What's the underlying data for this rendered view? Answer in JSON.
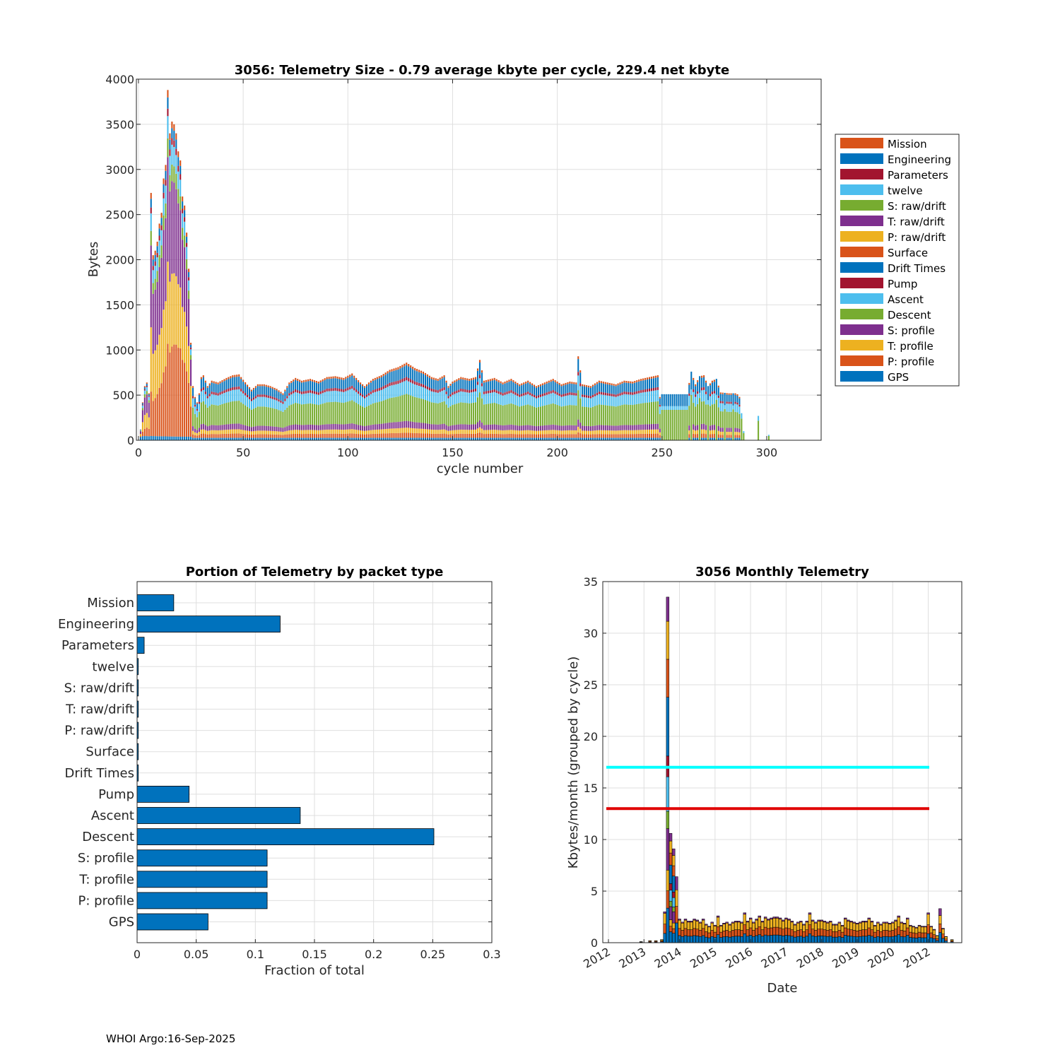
{
  "footer": "WHOI Argo:16-Sep-2025",
  "colors": {
    "orange": "#D95319",
    "blue": "#0072BD",
    "darkred": "#A2142F",
    "lightblue": "#4DBEEE",
    "green": "#77AC30",
    "purple": "#7E2F8E",
    "yellow": "#EDB120",
    "cyan": "#00FFFF",
    "red": "#E00000"
  },
  "chart_data": [
    {
      "type": "bar",
      "stacked": true,
      "title": "3056: Telemetry Size - 0.79 average kbyte per cycle,  229.4 net kbyte",
      "xlabel": "cycle number",
      "ylabel": "Bytes",
      "xlim": [
        -1,
        326
      ],
      "ylim": [
        0,
        4000
      ],
      "xticks": [
        0,
        50,
        100,
        150,
        200,
        250,
        300
      ],
      "yticks": [
        0,
        500,
        1000,
        1500,
        2000,
        2500,
        3000,
        3500,
        4000
      ],
      "legend_position": "outside-right",
      "legend": [
        "Mission",
        "Engineering",
        "Parameters",
        "twelve",
        "S: raw/drift",
        "T: raw/drift",
        "P: raw/drift",
        "Surface",
        "Drift Times",
        "Pump",
        "Ascent",
        "Descent",
        "S: profile",
        "T: profile",
        "P: profile",
        "GPS"
      ],
      "legend_colors": [
        "#D95319",
        "#0072BD",
        "#A2142F",
        "#4DBEEE",
        "#77AC30",
        "#7E2F8E",
        "#EDB120",
        "#D95319",
        "#0072BD",
        "#A2142F",
        "#4DBEEE",
        "#77AC30",
        "#7E2F8E",
        "#EDB120",
        "#D95319",
        "#0072BD"
      ],
      "anchors": [
        [
          0,
          0
        ],
        [
          1,
          120
        ],
        [
          2,
          420
        ],
        [
          3,
          600
        ],
        [
          4,
          640
        ],
        [
          5,
          520
        ],
        [
          6,
          2740
        ],
        [
          7,
          2050
        ],
        [
          8,
          2100
        ],
        [
          9,
          2200
        ],
        [
          10,
          2400
        ],
        [
          11,
          2520
        ],
        [
          12,
          2900
        ],
        [
          13,
          3050
        ],
        [
          14,
          3880
        ],
        [
          15,
          3400
        ],
        [
          16,
          3530
        ],
        [
          17,
          3500
        ],
        [
          18,
          3400
        ],
        [
          19,
          3200
        ],
        [
          20,
          3100
        ],
        [
          21,
          2700
        ],
        [
          22,
          2600
        ],
        [
          23,
          2300
        ],
        [
          24,
          1900
        ],
        [
          25,
          1080
        ],
        [
          26,
          600
        ],
        [
          27,
          480
        ],
        [
          28,
          420
        ],
        [
          29,
          520
        ],
        [
          30,
          700
        ],
        [
          31,
          720
        ],
        [
          33,
          600
        ],
        [
          35,
          660
        ],
        [
          38,
          640
        ],
        [
          42,
          690
        ],
        [
          45,
          720
        ],
        [
          48,
          730
        ],
        [
          50,
          670
        ],
        [
          54,
          560
        ],
        [
          57,
          620
        ],
        [
          60,
          620
        ],
        [
          63,
          600
        ],
        [
          66,
          570
        ],
        [
          69,
          520
        ],
        [
          72,
          640
        ],
        [
          75,
          690
        ],
        [
          78,
          660
        ],
        [
          82,
          680
        ],
        [
          86,
          650
        ],
        [
          90,
          700
        ],
        [
          94,
          710
        ],
        [
          98,
          690
        ],
        [
          102,
          740
        ],
        [
          106,
          640
        ],
        [
          108,
          600
        ],
        [
          112,
          680
        ],
        [
          116,
          720
        ],
        [
          120,
          780
        ],
        [
          124,
          810
        ],
        [
          128,
          860
        ],
        [
          132,
          800
        ],
        [
          136,
          760
        ],
        [
          140,
          700
        ],
        [
          143,
          680
        ],
        [
          146,
          720
        ],
        [
          148,
          600
        ],
        [
          150,
          650
        ],
        [
          154,
          700
        ],
        [
          158,
          680
        ],
        [
          161,
          700
        ],
        [
          163,
          890
        ],
        [
          165,
          660
        ],
        [
          170,
          690
        ],
        [
          174,
          640
        ],
        [
          178,
          680
        ],
        [
          182,
          620
        ],
        [
          186,
          660
        ],
        [
          190,
          600
        ],
        [
          194,
          640
        ],
        [
          198,
          680
        ],
        [
          202,
          620
        ],
        [
          206,
          650
        ],
        [
          209,
          640
        ],
        [
          210,
          930
        ],
        [
          212,
          620
        ],
        [
          216,
          600
        ],
        [
          220,
          660
        ],
        [
          224,
          640
        ],
        [
          228,
          620
        ],
        [
          232,
          660
        ],
        [
          236,
          650
        ],
        [
          240,
          680
        ],
        [
          244,
          700
        ],
        [
          248,
          720
        ],
        [
          249,
          480
        ],
        [
          250,
          510
        ],
        [
          262,
          510
        ],
        [
          264,
          760
        ],
        [
          266,
          620
        ],
        [
          268,
          710
        ],
        [
          270,
          720
        ],
        [
          272,
          600
        ],
        [
          274,
          660
        ],
        [
          276,
          680
        ],
        [
          278,
          530
        ],
        [
          282,
          520
        ],
        [
          285,
          520
        ],
        [
          286,
          510
        ],
        [
          287,
          480
        ],
        [
          288,
          300
        ],
        [
          289,
          100
        ],
        [
          290,
          0
        ],
        [
          295,
          0
        ],
        [
          296,
          270
        ],
        [
          297,
          0
        ],
        [
          300,
          0
        ],
        [
          301,
          60
        ],
        [
          302,
          0
        ],
        [
          326,
          0
        ]
      ],
      "note": "Per-cycle stacked bytes; totals interpolated from anchors [cycle, total_bytes]. Composition: cycles 0-25 dominated by P/T profile (orange/yellow) and S profile (purple); cycles 26-288 mostly Descent (green), Ascent (light blue) and Engineering (blue)."
    },
    {
      "type": "bar",
      "orientation": "horizontal",
      "title": "Portion of Telemetry by packet type",
      "xlabel": "Fraction of total",
      "ylabel": "",
      "xlim": [
        0,
        0.3
      ],
      "xticks": [
        "0",
        "0.05",
        "0.1",
        "0.15",
        "0.2",
        "0.25",
        "0.3"
      ],
      "categories": [
        "Mission",
        "Engineering",
        "Parameters",
        "twelve",
        "S: raw/drift",
        "T: raw/drift",
        "P: raw/drift",
        "Surface",
        "Drift Times",
        "Pump",
        "Ascent",
        "Descent",
        "S: profile",
        "T: profile",
        "P: profile",
        "GPS"
      ],
      "values": [
        0.031,
        0.121,
        0.006,
        0.001,
        0.001,
        0.001,
        0.001,
        0.001,
        0.001,
        0.044,
        0.138,
        0.251,
        0.11,
        0.11,
        0.11,
        0.06
      ]
    },
    {
      "type": "bar",
      "stacked": true,
      "title": "3056 Monthly Telemetry",
      "xlabel": "Date",
      "ylabel": "Kbytes/month (grouped by cycle)",
      "ylim": [
        0,
        35
      ],
      "yticks": [
        0,
        5,
        10,
        15,
        20,
        25,
        30,
        35
      ],
      "xtick_labels": [
        "2012",
        "2013",
        "2014",
        "2015",
        "2016",
        "2017",
        "2018",
        "2019",
        "2020",
        "2012"
      ],
      "reference_lines": [
        {
          "value": 17,
          "color": "cyan"
        },
        {
          "value": 13,
          "color": "red"
        }
      ],
      "months_offset": -11,
      "monthly_totals": [
        0,
        0,
        0,
        0,
        0,
        0,
        0,
        0,
        0,
        0.1,
        0,
        0,
        0.2,
        0,
        0.2,
        0,
        0.3,
        3.0,
        33.5,
        10.6,
        9.1,
        6.4,
        2.3,
        2.0,
        2.3,
        2.1,
        2.1,
        2.3,
        2.2,
        2.0,
        2.3,
        1.8,
        1.6,
        2.0,
        1.7,
        2.6,
        1.7,
        1.9,
        2.0,
        1.8,
        2.0,
        2.1,
        2.1,
        2.0,
        2.9,
        2.1,
        2.4,
        2.0,
        2.3,
        2.6,
        2.1,
        2.5,
        2.3,
        2.4,
        2.5,
        2.5,
        2.4,
        2.2,
        2.4,
        2.3,
        2.1,
        1.8,
        2.0,
        2.1,
        1.8,
        2.1,
        2.9,
        2.2,
        2.0,
        2.2,
        2.2,
        2.1,
        2.0,
        2.1,
        1.8,
        1.8,
        2.0,
        1.7,
        2.4,
        2.2,
        2.1,
        2.0,
        1.9,
        2.0,
        2.1,
        2.1,
        2.4,
        2.1,
        1.7,
        2.0,
        1.8,
        2.0,
        2.0,
        1.9,
        2.0,
        2.2,
        2.6,
        2.0,
        1.9,
        2.4,
        1.7,
        1.6,
        1.5,
        1.7,
        1.6,
        1.6,
        2.9,
        1.6,
        1.3,
        0.7,
        3.3,
        1.4,
        0.6,
        0,
        0.3,
        0,
        0,
        0,
        0,
        0,
        0,
        0,
        0,
        0,
        0
      ]
    }
  ]
}
